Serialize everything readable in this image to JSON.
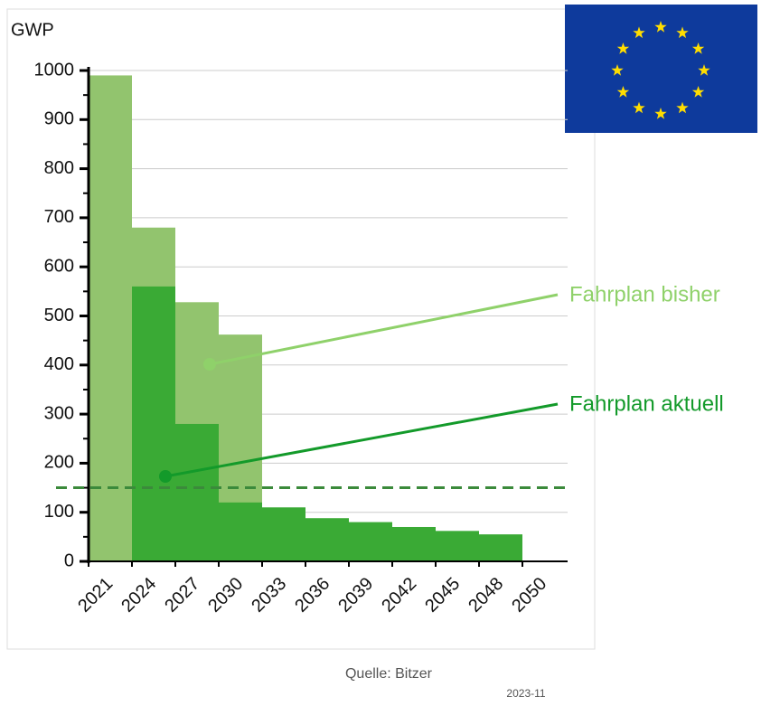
{
  "chart_data": {
    "type": "step-bar",
    "ylabel": "GWP",
    "categories": [
      "2021",
      "2024",
      "2027",
      "2030",
      "2033",
      "2036",
      "2039",
      "2042",
      "2045",
      "2048",
      "2050"
    ],
    "series": [
      {
        "name": "Fahrplan bisher",
        "color": "#92c46e",
        "label_color": "#8fd16a",
        "values": [
          990,
          680,
          528,
          462,
          null,
          null,
          null,
          null,
          null,
          null,
          null
        ]
      },
      {
        "name": "Fahrplan aktuell",
        "color": "#3aaa35",
        "label_color": "#139a2a",
        "values": [
          null,
          560,
          280,
          120,
          110,
          88,
          80,
          70,
          62,
          55,
          null
        ]
      }
    ],
    "ylim": [
      0,
      1000
    ],
    "yticks": [
      0,
      100,
      200,
      300,
      400,
      500,
      600,
      700,
      800,
      900,
      1000
    ],
    "grid": true,
    "hline": {
      "value": 150,
      "color": "#3b8a3b",
      "style": "dashed"
    },
    "source": "Quelle: Bitzer",
    "date": "2023-11"
  }
}
